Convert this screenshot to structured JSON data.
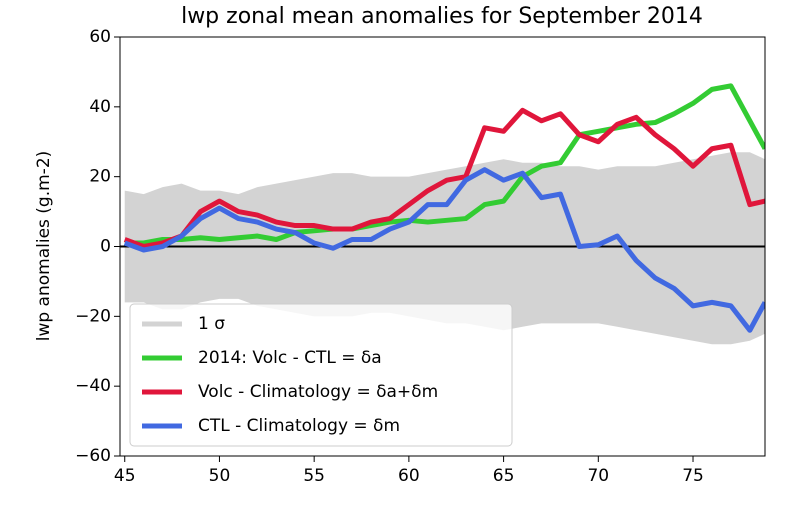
{
  "chart_data": {
    "type": "line",
    "title": "lwp zonal mean anomalies for September 2014",
    "y_label": "lwp anomalies (g.m-2)",
    "x": [
      45,
      46,
      47,
      48,
      49,
      50,
      51,
      52,
      53,
      54,
      55,
      56,
      57,
      58,
      59,
      60,
      61,
      62,
      63,
      64,
      65,
      66,
      67,
      68,
      69,
      70,
      71,
      72,
      73,
      74,
      75,
      76,
      77,
      78,
      78.8
    ],
    "xlim": [
      44.75,
      78.8
    ],
    "xticks": [
      45,
      50,
      55,
      60,
      65,
      70,
      75
    ],
    "ylim": [
      -60,
      60
    ],
    "yticks": [
      {
        "value": -60,
        "label": "−60"
      },
      {
        "value": -40,
        "label": "−40"
      },
      {
        "value": -20,
        "label": "−20"
      },
      0,
      20,
      40,
      60
    ],
    "zero_line": true,
    "band": {
      "name": "1 σ",
      "color": "#d3d3d3",
      "upper": [
        16,
        15,
        17,
        18,
        16,
        16,
        15,
        17,
        18,
        19,
        20,
        21,
        21,
        20,
        20,
        20,
        21,
        22,
        23,
        24,
        25,
        24,
        24,
        23,
        23,
        22,
        23,
        23,
        23,
        24,
        25,
        26,
        27,
        27,
        25
      ],
      "lower": [
        -16,
        -16,
        -18,
        -18,
        -16,
        -15,
        -15,
        -17,
        -18,
        -19,
        -20,
        -20,
        -20,
        -19,
        -19,
        -20,
        -21,
        -22,
        -22,
        -23,
        -24,
        -23,
        -22,
        -22,
        -22,
        -22,
        -23,
        -24,
        -25,
        -26,
        -27,
        -28,
        -28,
        -27,
        -25
      ]
    },
    "series": [
      {
        "name": "2014: Volc - CTL = δa",
        "color": "#33cc33",
        "values": [
          1,
          1,
          2,
          2,
          2.5,
          2,
          2.5,
          3,
          2,
          4,
          4.5,
          5,
          5,
          6,
          7,
          7.5,
          7,
          7.5,
          8,
          12,
          13,
          20,
          23,
          24,
          32,
          33,
          34,
          35,
          35.5,
          38,
          41,
          45,
          46,
          36,
          28
        ]
      },
      {
        "name": "Volc - Climatology = δa+δm",
        "color": "#e0163b",
        "values": [
          2,
          0,
          1,
          3,
          10,
          13,
          10,
          9,
          7,
          6,
          6,
          5,
          5,
          7,
          8,
          12,
          16,
          19,
          20,
          34,
          33,
          39,
          36,
          38,
          32,
          30,
          35,
          37,
          32,
          28,
          23,
          28,
          29,
          12,
          13
        ]
      },
      {
        "name": "CTL - Climatology = δm",
        "color": "#4169e1",
        "values": [
          1,
          -1,
          0,
          3,
          8,
          11,
          8,
          7,
          5,
          4,
          1,
          -0.5,
          2,
          2,
          5,
          7,
          12,
          12,
          19,
          22,
          19,
          21,
          14,
          15,
          0,
          0.5,
          3,
          -4,
          -9,
          -12,
          -17,
          -16,
          -17,
          -24,
          -16
        ]
      }
    ],
    "legend": "lower left"
  }
}
